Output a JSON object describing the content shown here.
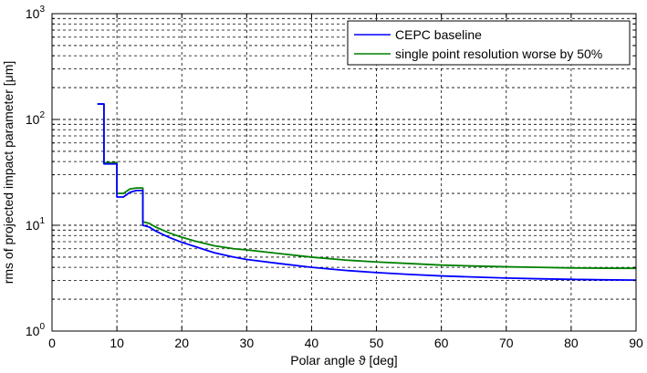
{
  "chart_data": {
    "type": "line",
    "title": "",
    "xlabel": "Polar angle ϑ [deg]",
    "ylabel": "rms of projected impact parameter [μm]",
    "xlim": [
      0,
      90
    ],
    "ylim": [
      1,
      1000
    ],
    "yscale": "log",
    "grid": true,
    "legend_position": "top-right",
    "x_ticks": [
      "0",
      "10",
      "20",
      "30",
      "40",
      "50",
      "60",
      "70",
      "80",
      "90"
    ],
    "y_ticks": [
      {
        "base": "10",
        "exp": "0",
        "value": 1
      },
      {
        "base": "10",
        "exp": "1",
        "value": 10
      },
      {
        "base": "10",
        "exp": "2",
        "value": 100
      },
      {
        "base": "10",
        "exp": "3",
        "value": 1000
      }
    ],
    "series": [
      {
        "name": "CEPC baseline",
        "color": "#0000ff",
        "x": [
          7,
          8,
          8,
          9,
          9,
          10,
          10,
          11,
          12,
          13,
          14,
          14,
          15,
          16,
          18,
          20,
          22,
          25,
          28,
          30,
          35,
          40,
          45,
          50,
          55,
          60,
          65,
          70,
          75,
          80,
          85,
          90
        ],
        "y": [
          140,
          140,
          38,
          38,
          38,
          38,
          18.5,
          18.5,
          20.5,
          21.3,
          21.3,
          10,
          9.6,
          8.8,
          7.7,
          6.9,
          6.3,
          5.5,
          5.0,
          4.75,
          4.35,
          4.0,
          3.75,
          3.57,
          3.43,
          3.32,
          3.24,
          3.17,
          3.12,
          3.08,
          3.05,
          3.03
        ]
      },
      {
        "name": "single point resolution worse by 50%",
        "color": "#008000",
        "x": [
          7,
          8,
          8,
          9,
          9,
          10,
          10,
          11,
          12,
          13,
          14,
          14,
          15,
          16,
          18,
          20,
          22,
          25,
          28,
          30,
          35,
          40,
          45,
          50,
          55,
          60,
          65,
          70,
          75,
          80,
          85,
          90
        ],
        "y": [
          140,
          140,
          39,
          39,
          39,
          39,
          20,
          20,
          22,
          22.5,
          22.5,
          10.8,
          10.4,
          9.6,
          8.5,
          7.7,
          7.1,
          6.4,
          6.0,
          5.85,
          5.4,
          5.0,
          4.7,
          4.5,
          4.35,
          4.2,
          4.12,
          4.05,
          4.0,
          3.95,
          3.93,
          3.92
        ]
      }
    ]
  }
}
